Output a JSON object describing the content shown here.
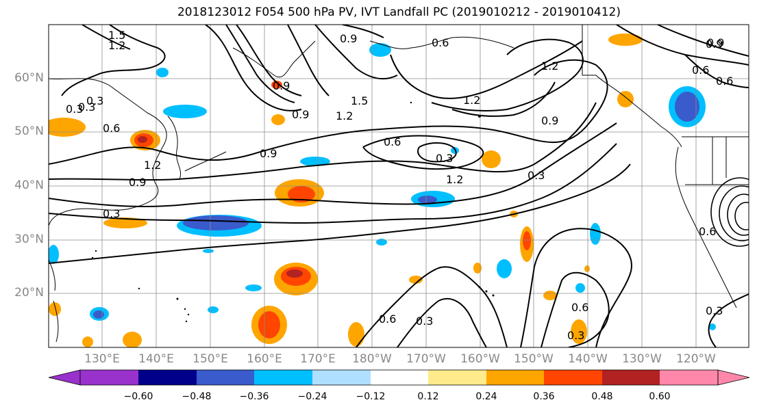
{
  "title": "2018123012 F054 500 hPa PV, IVT Landfall PC (2019010212 - 2019010412)",
  "lat_labels": [
    "60°N",
    "50°N",
    "40°N",
    "30°N",
    "20°N"
  ],
  "lon_labels": [
    "130°E",
    "140°E",
    "150°E",
    "160°E",
    "170°E",
    "180°W",
    "170°W",
    "160°W",
    "150°W",
    "140°W",
    "130°W",
    "120°W"
  ],
  "colorbar": {
    "ticks": [
      "−0.60",
      "−0.48",
      "−0.36",
      "−0.24",
      "−0.12",
      "0.12",
      "0.24",
      "0.36",
      "0.48",
      "0.60"
    ],
    "colors": [
      "#9932CC",
      "#00008B",
      "#3A5BCB",
      "#00BFFF",
      "#B0E0FF",
      "#FFFFFF",
      "#FFEB8C",
      "#FFA500",
      "#FF4500",
      "#B22222",
      "#FF88AA"
    ]
  },
  "contour_labels": [
    "1.5",
    "1.2",
    "0.9",
    "0.6",
    "0.3",
    "0.9",
    "1.2",
    "1.5",
    "0.6",
    "0.9",
    "0.3",
    "1.2",
    "0.9",
    "0.6",
    "0.3",
    "0.6",
    "0.9",
    "1.2",
    "0.3",
    "0.6",
    "0.3",
    "0.3",
    "0.6",
    "0.3",
    "0.6",
    "0.9",
    "0.6",
    "0.9",
    "0.3",
    "1.2",
    "1.2",
    "0.9",
    "0.3"
  ]
}
